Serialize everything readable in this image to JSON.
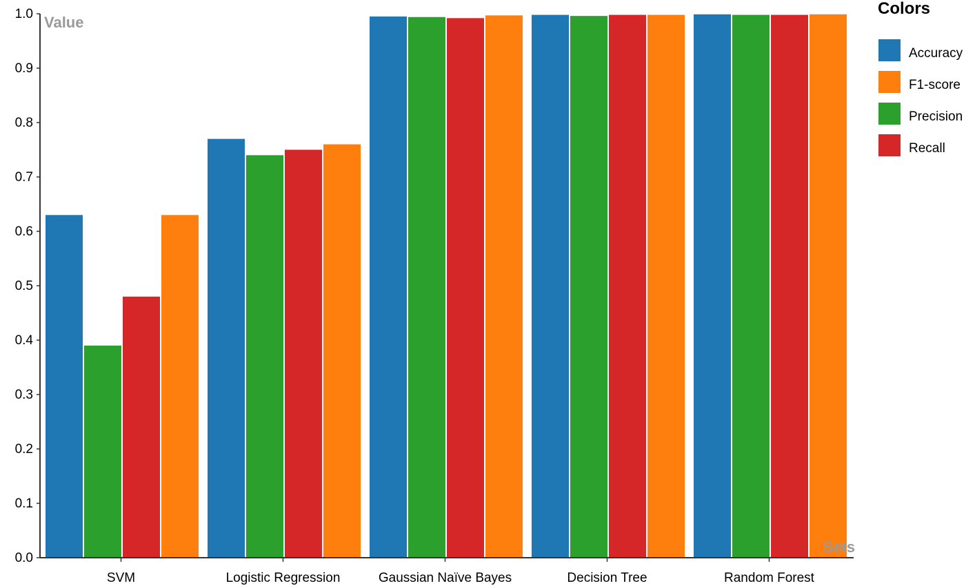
{
  "chart_data": {
    "type": "bar",
    "title": "",
    "ylabel": "Value",
    "xlabel": "Sets",
    "ylim": [
      0,
      1.0
    ],
    "yticks": [
      "0.0",
      "0.1",
      "0.2",
      "0.3",
      "0.4",
      "0.5",
      "0.6",
      "0.7",
      "0.8",
      "0.9",
      "1.0"
    ],
    "categories": [
      "SVM",
      "Logistic Regression",
      "Gaussian Naïve Bayes",
      "Decision Tree",
      "Random Forest"
    ],
    "series": [
      {
        "name": "Accuracy",
        "color": "#1f77b4",
        "values": [
          0.63,
          0.77,
          0.995,
          0.998,
          0.999
        ]
      },
      {
        "name": "Precision",
        "color": "#2ca02c",
        "values": [
          0.39,
          0.74,
          0.994,
          0.996,
          0.998
        ]
      },
      {
        "name": "Recall",
        "color": "#d62728",
        "values": [
          0.48,
          0.75,
          0.992,
          0.998,
          0.998
        ]
      },
      {
        "name": "F1-score",
        "color": "#ff7f0e",
        "values": [
          0.63,
          0.76,
          0.997,
          0.998,
          0.999
        ]
      }
    ],
    "grid": false,
    "legend": {
      "title": "Colors",
      "placement": "top-right",
      "entries": [
        {
          "name": "Accuracy",
          "color": "#1f77b4"
        },
        {
          "name": "F1-score",
          "color": "#ff7f0e"
        },
        {
          "name": "Precision",
          "color": "#2ca02c"
        },
        {
          "name": "Recall",
          "color": "#d62728"
        }
      ]
    }
  }
}
